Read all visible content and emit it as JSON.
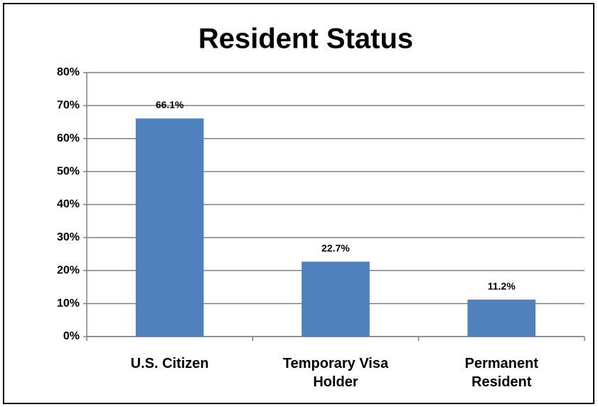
{
  "chart_data": {
    "type": "bar",
    "title": "Resident Status",
    "categories": [
      "U.S. Citizen",
      "Temporary Visa Holder",
      "Permanent Resident"
    ],
    "values": [
      66.1,
      22.7,
      11.2
    ],
    "value_labels": [
      "66.1%",
      "22.7%",
      "11.2%"
    ],
    "color": "#4f81bd",
    "ylim": [
      0,
      80
    ],
    "yticks": [
      {
        "value": 0,
        "label": "0%"
      },
      {
        "value": 10,
        "label": "10%"
      },
      {
        "value": 20,
        "label": "20%"
      },
      {
        "value": 30,
        "label": "30%"
      },
      {
        "value": 40,
        "label": "40%"
      },
      {
        "value": 50,
        "label": "50%"
      },
      {
        "value": 60,
        "label": "60%"
      },
      {
        "value": 70,
        "label": "70%"
      },
      {
        "value": 80,
        "label": "80%"
      }
    ],
    "grid": true
  }
}
